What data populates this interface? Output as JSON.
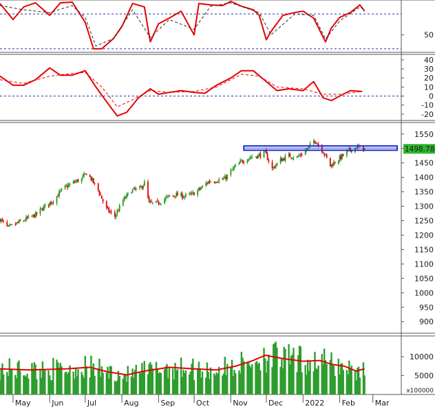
{
  "chart_data": [
    {
      "panel": "oscillator-1",
      "type": "line",
      "ylim": [
        25,
        100
      ],
      "y_ticks": [
        50
      ],
      "reference_levels": [
        80,
        30
      ],
      "series": [
        {
          "color": "#e60000",
          "style": "solid",
          "x": [
            "2021-04-20",
            "2021-05-01",
            "2021-05-10",
            "2021-05-20",
            "2021-06-01",
            "2021-06-10",
            "2021-06-20",
            "2021-07-01",
            "2021-07-08",
            "2021-07-15",
            "2021-07-25",
            "2021-08-01",
            "2021-08-10",
            "2021-08-20",
            "2021-08-25",
            "2021-09-01",
            "2021-09-10",
            "2021-09-20",
            "2021-10-01",
            "2021-10-05",
            "2021-10-15",
            "2021-10-25",
            "2021-11-01",
            "2021-11-10",
            "2021-11-20",
            "2021-11-25",
            "2021-12-01",
            "2021-12-05",
            "2021-12-15",
            "2021-12-25",
            "2022-01-01",
            "2022-01-10",
            "2022-01-20",
            "2022-01-25",
            "2022-02-01",
            "2022-02-10",
            "2022-02-18",
            "2022-02-22"
          ],
          "y": [
            95,
            72,
            90,
            96,
            78,
            96,
            97,
            68,
            30,
            30,
            45,
            62,
            95,
            90,
            40,
            66,
            74,
            84,
            50,
            95,
            93,
            92,
            98,
            91,
            86,
            78,
            43,
            55,
            78,
            82,
            84,
            74,
            40,
            60,
            75,
            82,
            93,
            84
          ]
        },
        {
          "color": "#2a2a2a",
          "style": "dashed",
          "x": [
            "2021-04-20",
            "2021-05-10",
            "2021-06-01",
            "2021-06-20",
            "2021-07-01",
            "2021-07-10",
            "2021-07-25",
            "2021-08-10",
            "2021-08-25",
            "2021-09-10",
            "2021-10-01",
            "2021-10-15",
            "2021-11-01",
            "2021-11-25",
            "2021-12-05",
            "2021-12-25",
            "2022-01-10",
            "2022-01-20",
            "2022-02-01",
            "2022-02-18",
            "2022-02-22"
          ],
          "y": [
            92,
            86,
            82,
            92,
            75,
            34,
            45,
            86,
            46,
            72,
            58,
            91,
            96,
            82,
            50,
            80,
            78,
            44,
            70,
            90,
            86
          ]
        }
      ]
    },
    {
      "panel": "oscillator-2",
      "type": "line",
      "ylim": [
        -27,
        46
      ],
      "y_ticks": [
        -20,
        -10,
        0,
        10,
        20,
        30,
        40
      ],
      "reference_levels": [
        0
      ],
      "series": [
        {
          "color": "#e60000",
          "style": "solid",
          "x": [
            "2021-04-20",
            "2021-05-01",
            "2021-05-10",
            "2021-05-20",
            "2021-06-01",
            "2021-06-10",
            "2021-06-20",
            "2021-07-01",
            "2021-07-10",
            "2021-07-20",
            "2021-07-28",
            "2021-08-05",
            "2021-08-15",
            "2021-08-25",
            "2021-09-01",
            "2021-09-10",
            "2021-09-20",
            "2021-10-01",
            "2021-10-10",
            "2021-10-20",
            "2021-11-01",
            "2021-11-10",
            "2021-11-20",
            "2021-12-01",
            "2021-12-10",
            "2021-12-20",
            "2022-01-01",
            "2022-01-10",
            "2022-01-18",
            "2022-01-25",
            "2022-02-01",
            "2022-02-10",
            "2022-02-20"
          ],
          "y": [
            22,
            12,
            12,
            18,
            31,
            23,
            23,
            28,
            10,
            -8,
            -22,
            -18,
            -2,
            8,
            2,
            4,
            6,
            4,
            3,
            12,
            20,
            28,
            28,
            16,
            6,
            8,
            6,
            16,
            -2,
            -5,
            0,
            6,
            5
          ]
        },
        {
          "color": "#e60000",
          "style": "dashed",
          "x": [
            "2021-04-20",
            "2021-05-10",
            "2021-06-01",
            "2021-06-20",
            "2021-07-01",
            "2021-07-15",
            "2021-07-28",
            "2021-08-10",
            "2021-08-25",
            "2021-09-10",
            "2021-10-01",
            "2021-10-20",
            "2021-11-10",
            "2021-11-25",
            "2021-12-10",
            "2022-01-01",
            "2022-01-18",
            "2022-02-01",
            "2022-02-20"
          ],
          "y": [
            18,
            14,
            22,
            25,
            26,
            10,
            -12,
            -4,
            6,
            4,
            5,
            10,
            24,
            22,
            10,
            8,
            2,
            2,
            5
          ]
        }
      ]
    },
    {
      "panel": "price",
      "type": "candlestick",
      "ylim": [
        860,
        1590
      ],
      "y_ticks": [
        900,
        950,
        1000,
        1050,
        1100,
        1150,
        1200,
        1250,
        1300,
        1350,
        1400,
        1450,
        1500,
        1550
      ],
      "last_value": "1498.780",
      "resistance_zone": [
        1494,
        1509
      ],
      "x_range": [
        "2021-04-20",
        "2022-03-25"
      ],
      "month_ticks": [
        "May",
        "Jun",
        "Jul",
        "Aug",
        "Sep",
        "Oct",
        "Nov",
        "Dec",
        "2022",
        "Feb",
        "Mar"
      ],
      "month_tick_dates": [
        "2021-05-01",
        "2021-06-01",
        "2021-07-01",
        "2021-08-01",
        "2021-09-01",
        "2021-10-01",
        "2021-11-01",
        "2021-12-01",
        "2022-01-01",
        "2022-02-01",
        "2022-03-01"
      ],
      "trend_dates": [
        "2021-04-20",
        "2021-04-27",
        "2021-05-04",
        "2021-05-12",
        "2021-05-20",
        "2021-05-28",
        "2021-06-04",
        "2021-06-12",
        "2021-06-20",
        "2021-06-28",
        "2021-07-02",
        "2021-07-06",
        "2021-07-12",
        "2021-07-19",
        "2021-07-26",
        "2021-08-02",
        "2021-08-09",
        "2021-08-16",
        "2021-08-20",
        "2021-08-24",
        "2021-08-31",
        "2021-09-08",
        "2021-09-15",
        "2021-09-22",
        "2021-09-29",
        "2021-10-06",
        "2021-10-13",
        "2021-10-20",
        "2021-10-27",
        "2021-11-03",
        "2021-11-10",
        "2021-11-17",
        "2021-11-24",
        "2021-11-30",
        "2021-12-06",
        "2021-12-13",
        "2021-12-20",
        "2021-12-27",
        "2022-01-04",
        "2022-01-11",
        "2022-01-18",
        "2022-01-24",
        "2022-02-08",
        "2022-02-15",
        "2022-02-22"
      ],
      "trend_close": [
        1255,
        1225,
        1240,
        1255,
        1270,
        1300,
        1320,
        1360,
        1380,
        1395,
        1415,
        1395,
        1355,
        1290,
        1265,
        1320,
        1355,
        1360,
        1380,
        1310,
        1310,
        1330,
        1340,
        1335,
        1340,
        1360,
        1385,
        1390,
        1395,
        1430,
        1455,
        1470,
        1475,
        1485,
        1430,
        1460,
        1475,
        1470,
        1495,
        1530,
        1490,
        1440,
        1490,
        1505,
        1498.78
      ],
      "volatility": 11
    },
    {
      "panel": "volume",
      "type": "bar",
      "ylim": [
        0,
        15500
      ],
      "y_ticks": [
        5000,
        10000
      ],
      "unit_label": "x100000",
      "moving_average": {
        "color": "#e60000",
        "x": [
          "2021-04-20",
          "2021-05-15",
          "2021-06-15",
          "2021-07-05",
          "2021-07-20",
          "2021-08-05",
          "2021-08-20",
          "2021-09-10",
          "2021-10-01",
          "2021-10-20",
          "2021-11-05",
          "2021-11-20",
          "2021-11-30",
          "2021-12-15",
          "2022-01-01",
          "2022-01-15",
          "2022-01-25",
          "2022-02-05",
          "2022-02-15",
          "2022-02-22"
        ],
        "y": [
          6800,
          6500,
          6800,
          7200,
          6000,
          5200,
          6200,
          7200,
          6800,
          6500,
          7500,
          9000,
          10400,
          9500,
          8800,
          9000,
          8000,
          7500,
          6200,
          6800
        ]
      },
      "bar_color": "#2e9d2e"
    }
  ]
}
